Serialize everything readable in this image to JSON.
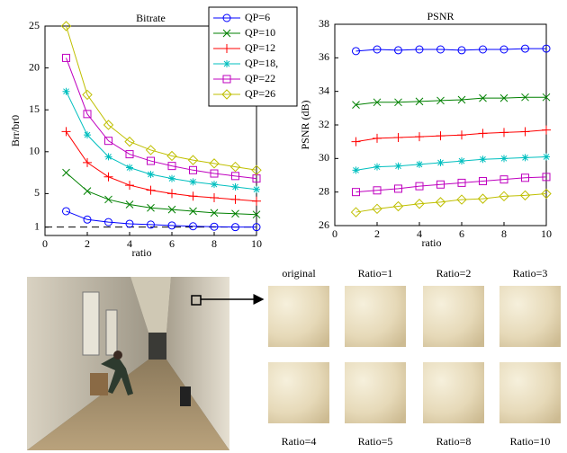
{
  "chart_data": [
    {
      "type": "line",
      "title": "Bitrate",
      "x_label": "ratio",
      "y_label": "Brr/br0",
      "x": [
        1,
        2,
        3,
        4,
        5,
        6,
        7,
        8,
        9,
        10
      ],
      "xlim": [
        0,
        10
      ],
      "xticks": [
        0,
        2,
        4,
        6,
        8,
        10
      ],
      "ylim": [
        0,
        25
      ],
      "yticks": [
        1,
        5,
        10,
        15,
        20,
        25
      ],
      "reference_line": 1,
      "legend": "upper right",
      "series": [
        {
          "name": "QP=6",
          "color": "#0000ff",
          "marker": "o",
          "values": [
            2.9,
            1.9,
            1.6,
            1.4,
            1.3,
            1.2,
            1.1,
            1.05,
            1.0,
            1.0
          ]
        },
        {
          "name": "QP=10",
          "color": "#008000",
          "marker": "x",
          "values": [
            7.5,
            5.3,
            4.3,
            3.7,
            3.3,
            3.1,
            2.9,
            2.7,
            2.6,
            2.5
          ]
        },
        {
          "name": "QP=12",
          "color": "#ff0000",
          "marker": "+",
          "values": [
            12.4,
            8.7,
            7.0,
            6.0,
            5.4,
            5.0,
            4.7,
            4.5,
            4.3,
            4.1
          ]
        },
        {
          "name": "QP=18,",
          "color": "#00bfbf",
          "marker": "*",
          "values": [
            17.2,
            12.0,
            9.4,
            8.1,
            7.3,
            6.8,
            6.4,
            6.1,
            5.8,
            5.5
          ]
        },
        {
          "name": "QP=22",
          "color": "#bf00bf",
          "marker": "s",
          "values": [
            21.2,
            14.5,
            11.3,
            9.7,
            8.9,
            8.3,
            7.8,
            7.4,
            7.1,
            6.8
          ]
        },
        {
          "name": "QP=26",
          "color": "#bfbf00",
          "marker": "d",
          "values": [
            25.0,
            16.8,
            13.2,
            11.2,
            10.2,
            9.5,
            9.0,
            8.6,
            8.2,
            7.8
          ]
        }
      ]
    },
    {
      "type": "line",
      "title": "PSNR",
      "x_label": "ratio",
      "y_label": "PSNR (dB)",
      "x": [
        1,
        2,
        3,
        4,
        5,
        6,
        7,
        8,
        9,
        10
      ],
      "xlim": [
        0,
        10
      ],
      "xticks": [
        0,
        2,
        4,
        6,
        8,
        10
      ],
      "ylim": [
        26,
        38
      ],
      "yticks": [
        26,
        28,
        30,
        32,
        34,
        36,
        38
      ],
      "series": [
        {
          "color": "#0000ff",
          "marker": "o",
          "values": [
            36.4,
            36.5,
            36.45,
            36.5,
            36.5,
            36.45,
            36.5,
            36.5,
            36.55,
            36.55
          ]
        },
        {
          "color": "#008000",
          "marker": "x",
          "values": [
            33.2,
            33.35,
            33.35,
            33.4,
            33.45,
            33.5,
            33.6,
            33.6,
            33.65,
            33.65
          ]
        },
        {
          "color": "#ff0000",
          "marker": "+",
          "values": [
            31.0,
            31.2,
            31.25,
            31.3,
            31.35,
            31.4,
            31.5,
            31.55,
            31.6,
            31.7
          ]
        },
        {
          "color": "#00bfbf",
          "marker": "*",
          "values": [
            29.3,
            29.5,
            29.55,
            29.65,
            29.75,
            29.85,
            29.95,
            30.0,
            30.05,
            30.1
          ]
        },
        {
          "color": "#bf00bf",
          "marker": "s",
          "values": [
            28.0,
            28.1,
            28.2,
            28.35,
            28.45,
            28.55,
            28.65,
            28.75,
            28.85,
            28.9
          ]
        },
        {
          "color": "#bfbf00",
          "marker": "d",
          "values": [
            26.8,
            27.0,
            27.15,
            27.3,
            27.4,
            27.55,
            27.6,
            27.75,
            27.8,
            27.9
          ]
        }
      ]
    }
  ],
  "patches": {
    "labels": [
      "original",
      "Ratio=1",
      "Ratio=2",
      "Ratio=3",
      "Ratio=4",
      "Ratio=5",
      "Ratio=8",
      "Ratio=10"
    ]
  }
}
